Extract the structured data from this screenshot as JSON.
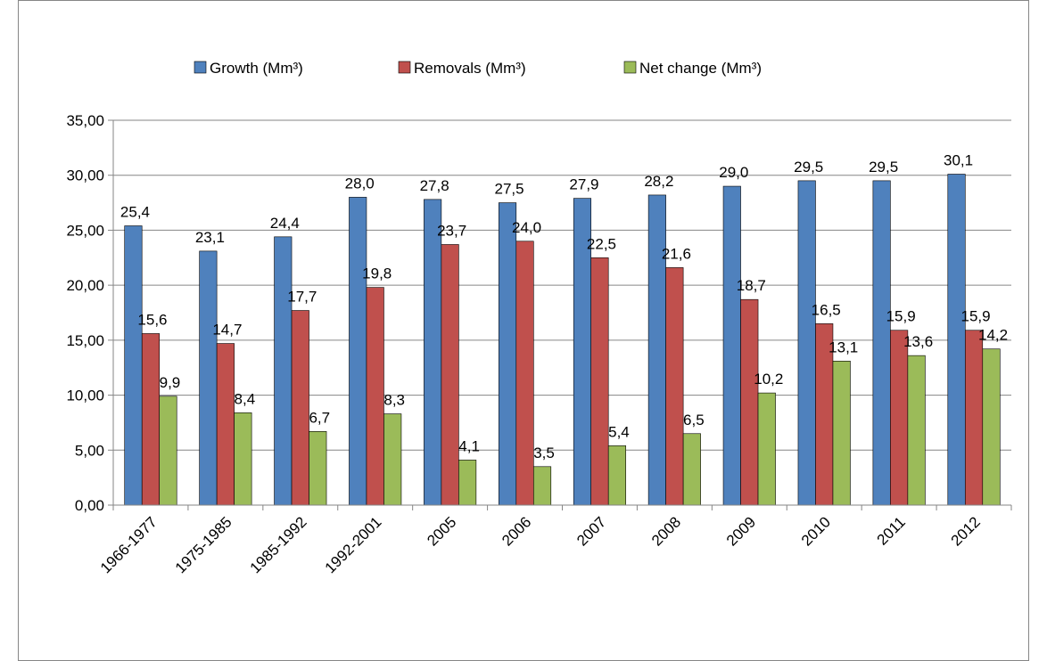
{
  "chart_data": {
    "type": "bar",
    "categories": [
      "1966-1977",
      "1975-1985",
      "1985-1992",
      "1992-2001",
      "2005",
      "2006",
      "2007",
      "2008",
      "2009",
      "2010",
      "2011",
      "2012"
    ],
    "series": [
      {
        "name": "Growth (Mm³)",
        "color": "#4f81bd",
        "values": [
          25.4,
          23.1,
          24.4,
          28.0,
          27.8,
          27.5,
          27.9,
          28.2,
          29.0,
          29.5,
          29.5,
          30.1
        ],
        "value_labels": [
          "25,4",
          "23,1",
          "24,4",
          "28,0",
          "27,8",
          "27,5",
          "27,9",
          "28,2",
          "29,0",
          "29,5",
          "29,5",
          "30,1"
        ]
      },
      {
        "name": "Removals (Mm³)",
        "color": "#c0504d",
        "values": [
          15.6,
          14.7,
          17.7,
          19.8,
          23.7,
          24.0,
          22.5,
          21.6,
          18.7,
          16.5,
          15.9,
          15.9
        ],
        "value_labels": [
          "15,6",
          "14,7",
          "17,7",
          "19,8",
          "23,7",
          "24,0",
          "22,5",
          "21,6",
          "18,7",
          "16,5",
          "15,9",
          "15,9"
        ]
      },
      {
        "name": "Net change (Mm³)",
        "color": "#9bbb59",
        "values": [
          9.9,
          8.4,
          6.7,
          8.3,
          4.1,
          3.5,
          5.4,
          6.5,
          10.2,
          13.1,
          13.6,
          14.2
        ],
        "value_labels": [
          "9,9",
          "8,4",
          "6,7",
          "8,3",
          "4,1",
          "3,5",
          "5,4",
          "6,5",
          "10,2",
          "13,1",
          "13,6",
          "14,2"
        ]
      }
    ],
    "ylim": [
      0,
      35
    ],
    "yticks": [
      {
        "value": 0,
        "label": "0,00"
      },
      {
        "value": 5,
        "label": "5,00"
      },
      {
        "value": 10,
        "label": "10,00"
      },
      {
        "value": 15,
        "label": "15,00"
      },
      {
        "value": 20,
        "label": "20,00"
      },
      {
        "value": 25,
        "label": "25,00"
      },
      {
        "value": 30,
        "label": "30,00"
      },
      {
        "value": 35,
        "label": "35,00"
      }
    ],
    "grid": true,
    "legend": "top"
  }
}
